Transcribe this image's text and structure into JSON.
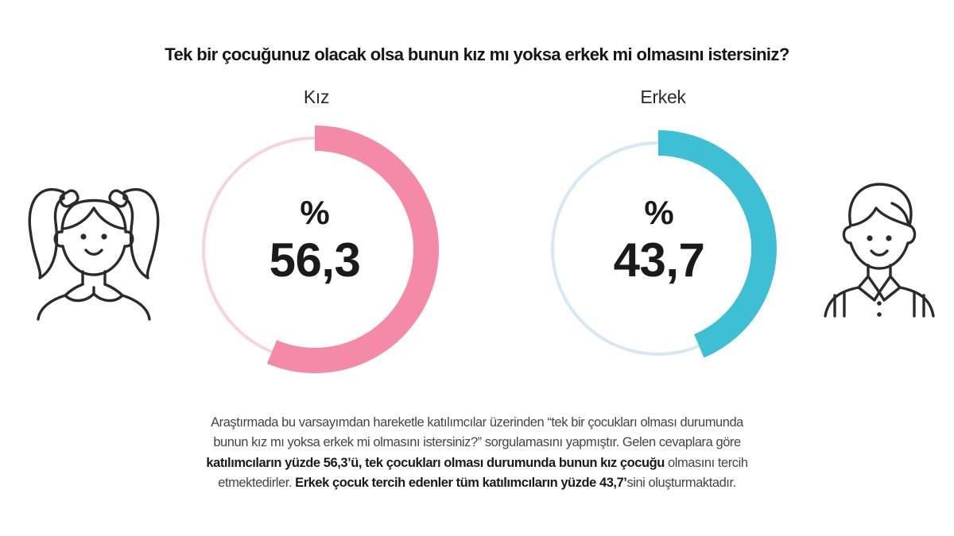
{
  "title": "Tek bir çocuğunuz olacak olsa bunun kız mı yoksa erkek mi olmasını istersiniz?",
  "chart_data": {
    "type": "pie",
    "subtype": "donut-pair",
    "title": "Tek bir çocuğunuz olacak olsa bunun kız mı yoksa erkek mi olmasını istersiniz?",
    "categories": [
      "Kız",
      "Erkek"
    ],
    "values": [
      56.3,
      43.7
    ],
    "unit": "%",
    "value_labels": [
      "% 56,3",
      "% 43,7"
    ],
    "colors": [
      "#f48aa8",
      "#3fbfd3"
    ],
    "track_colors": [
      "#f5d3df",
      "#d6e8f4"
    ]
  },
  "charts": [
    {
      "label": "Kız",
      "percent_sign": "%",
      "value_text": "56,3",
      "value": 56.3,
      "color": "#f48aa8",
      "track": "#f5d3df"
    },
    {
      "label": "Erkek",
      "percent_sign": "%",
      "value_text": "43,7",
      "value": 43.7,
      "color": "#3fbfd3",
      "track": "#d6e8f4"
    }
  ],
  "icons": {
    "left": "girl-icon",
    "right": "boy-icon"
  },
  "paragraph": {
    "line1": "Araştırmada bu varsayımdan hareketle katılımcılar üzerinden “tek bir çocukları olması durumunda",
    "line2": "bunun kız mı yoksa erkek mi olmasını istersiniz?” sorgulamasını yapmıştır. Gelen cevaplara göre",
    "line3_bold": "katılımcıların yüzde 56,3’ü, tek çocukları olması durumunda bunun kız çocuğu",
    "line3_rest": " olmasını tercih",
    "line4_start": "etmektedirler. ",
    "line4_bold": "Erkek çocuk tercih edenler tüm katılımcıların yüzde 43,7’",
    "line4_rest": "sini oluşturmaktadır."
  }
}
